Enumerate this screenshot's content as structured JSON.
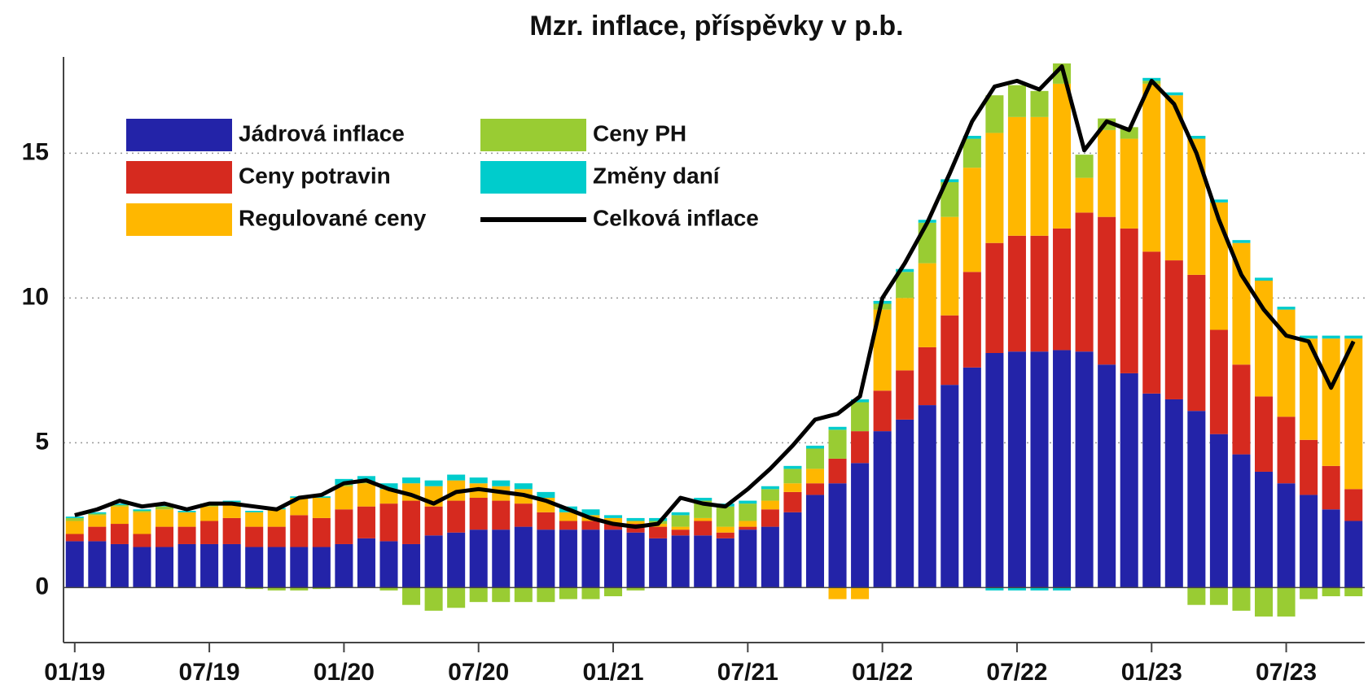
{
  "chart_data": {
    "type": "bar",
    "title": "Mzr. inflace, příspěvky v p.b.",
    "categories": [
      "01/19",
      null,
      null,
      null,
      null,
      null,
      "07/19",
      null,
      null,
      null,
      null,
      null,
      "01/20",
      null,
      null,
      null,
      null,
      null,
      "07/20",
      null,
      null,
      null,
      null,
      null,
      "01/21",
      null,
      null,
      null,
      null,
      null,
      "07/21",
      null,
      null,
      null,
      null,
      null,
      "01/22",
      null,
      null,
      null,
      null,
      null,
      "07/22",
      null,
      null,
      null,
      null,
      null,
      "01/23",
      null,
      null,
      null,
      null,
      null,
      "07/23",
      null,
      null,
      null
    ],
    "series": [
      {
        "name": "Jádrová inflace",
        "color": "#2323a8",
        "values": [
          1.6,
          1.6,
          1.5,
          1.4,
          1.4,
          1.5,
          1.5,
          1.5,
          1.4,
          1.4,
          1.4,
          1.4,
          1.5,
          1.7,
          1.6,
          1.5,
          1.8,
          1.9,
          2.0,
          2.0,
          2.1,
          2.0,
          2.0,
          2.0,
          2.0,
          1.9,
          1.7,
          1.8,
          1.8,
          1.7,
          2.0,
          2.1,
          2.6,
          3.2,
          3.6,
          4.3,
          5.4,
          5.8,
          6.3,
          7.0,
          7.6,
          8.1,
          8.15,
          8.15,
          8.2,
          8.15,
          7.7,
          7.4,
          6.7,
          6.5,
          6.1,
          5.3,
          4.6,
          4.0,
          3.6,
          3.2,
          2.7,
          2.3
        ]
      },
      {
        "name": "Ceny potravin",
        "color": "#d62a1f",
        "values": [
          0.25,
          0.5,
          0.7,
          0.45,
          0.7,
          0.6,
          0.8,
          0.9,
          0.7,
          0.7,
          1.1,
          1.0,
          1.2,
          1.1,
          1.3,
          1.5,
          1.0,
          1.1,
          1.1,
          1.0,
          0.8,
          0.6,
          0.3,
          0.3,
          0.2,
          0.3,
          0.4,
          0.2,
          0.5,
          0.2,
          0.1,
          0.6,
          0.7,
          0.4,
          0.85,
          1.1,
          1.4,
          1.7,
          2.0,
          2.4,
          3.3,
          3.8,
          4.0,
          4.0,
          4.2,
          4.8,
          5.1,
          5.0,
          4.9,
          4.8,
          4.7,
          3.6,
          3.1,
          2.6,
          2.3,
          1.9,
          1.5,
          1.1
        ]
      },
      {
        "name": "Regulované ceny",
        "color": "#ffb700",
        "values": [
          0.45,
          0.4,
          0.6,
          0.75,
          0.6,
          0.5,
          0.5,
          0.5,
          0.5,
          0.6,
          0.6,
          0.7,
          0.8,
          0.8,
          0.5,
          0.6,
          0.7,
          0.7,
          0.5,
          0.5,
          0.5,
          0.5,
          0.3,
          0.2,
          0.2,
          0.1,
          0.1,
          0.1,
          0.1,
          0.2,
          0.2,
          0.3,
          0.3,
          0.5,
          -0.4,
          -0.4,
          2.8,
          2.5,
          2.9,
          3.4,
          3.6,
          3.8,
          4.1,
          4.1,
          5.0,
          1.2,
          3.0,
          3.1,
          5.8,
          5.7,
          4.7,
          4.4,
          4.2,
          4.0,
          3.7,
          3.5,
          4.4,
          5.2
        ]
      },
      {
        "name": "Ceny PH",
        "color": "#99cc33",
        "values": [
          0.1,
          0.05,
          0.05,
          0.05,
          0.1,
          0.0,
          0.05,
          0.05,
          -0.05,
          -0.1,
          -0.1,
          -0.05,
          0.05,
          0.05,
          -0.1,
          -0.6,
          -0.8,
          -0.7,
          -0.5,
          -0.5,
          -0.5,
          -0.5,
          -0.4,
          -0.4,
          -0.3,
          -0.1,
          0.1,
          0.4,
          0.6,
          0.7,
          0.6,
          0.4,
          0.5,
          0.7,
          1.0,
          1.0,
          0.2,
          0.9,
          1.4,
          1.2,
          1.0,
          1.3,
          1.1,
          0.9,
          0.7,
          0.8,
          0.4,
          0.4,
          0.1,
          0.0,
          -0.6,
          -0.6,
          -0.8,
          -1.0,
          -1.0,
          -0.4,
          -0.3,
          -0.3
        ]
      },
      {
        "name": "Změny daní",
        "color": "#00cccc",
        "values": [
          0.05,
          0.05,
          0.05,
          0.05,
          0.05,
          0.05,
          0.05,
          0.05,
          0.05,
          0.05,
          0.05,
          0.05,
          0.2,
          0.2,
          0.2,
          0.2,
          0.2,
          0.2,
          0.2,
          0.2,
          0.2,
          0.2,
          0.2,
          0.2,
          0.1,
          0.1,
          0.1,
          0.1,
          0.1,
          0.1,
          0.1,
          0.1,
          0.1,
          0.1,
          0.1,
          0.1,
          0.1,
          0.1,
          0.1,
          0.1,
          0.1,
          -0.1,
          -0.1,
          -0.1,
          -0.1,
          0.0,
          0.0,
          0.0,
          0.1,
          0.1,
          0.1,
          0.1,
          0.1,
          0.1,
          0.1,
          0.1,
          0.1,
          0.1
        ]
      },
      {
        "name": "Celková inflace",
        "color": "#000000",
        "type": "line",
        "values": [
          2.5,
          2.7,
          3.0,
          2.8,
          2.9,
          2.7,
          2.9,
          2.9,
          2.8,
          2.7,
          3.1,
          3.2,
          3.6,
          3.7,
          3.4,
          3.2,
          2.9,
          3.3,
          3.4,
          3.3,
          3.2,
          3.0,
          2.7,
          2.4,
          2.2,
          2.1,
          2.2,
          3.1,
          2.9,
          2.8,
          3.4,
          4.1,
          4.9,
          5.8,
          6.0,
          6.6,
          10.0,
          11.2,
          12.6,
          14.3,
          16.1,
          17.3,
          17.5,
          17.2,
          18.0,
          15.1,
          16.1,
          15.8,
          17.5,
          16.7,
          15.0,
          12.7,
          10.8,
          9.6,
          8.7,
          8.5,
          6.9,
          8.5
        ]
      }
    ],
    "ylim": [
      -1.9,
      18.1
    ],
    "yticks": [
      0,
      5,
      10,
      15
    ],
    "grid": true,
    "legend": "upper left"
  }
}
